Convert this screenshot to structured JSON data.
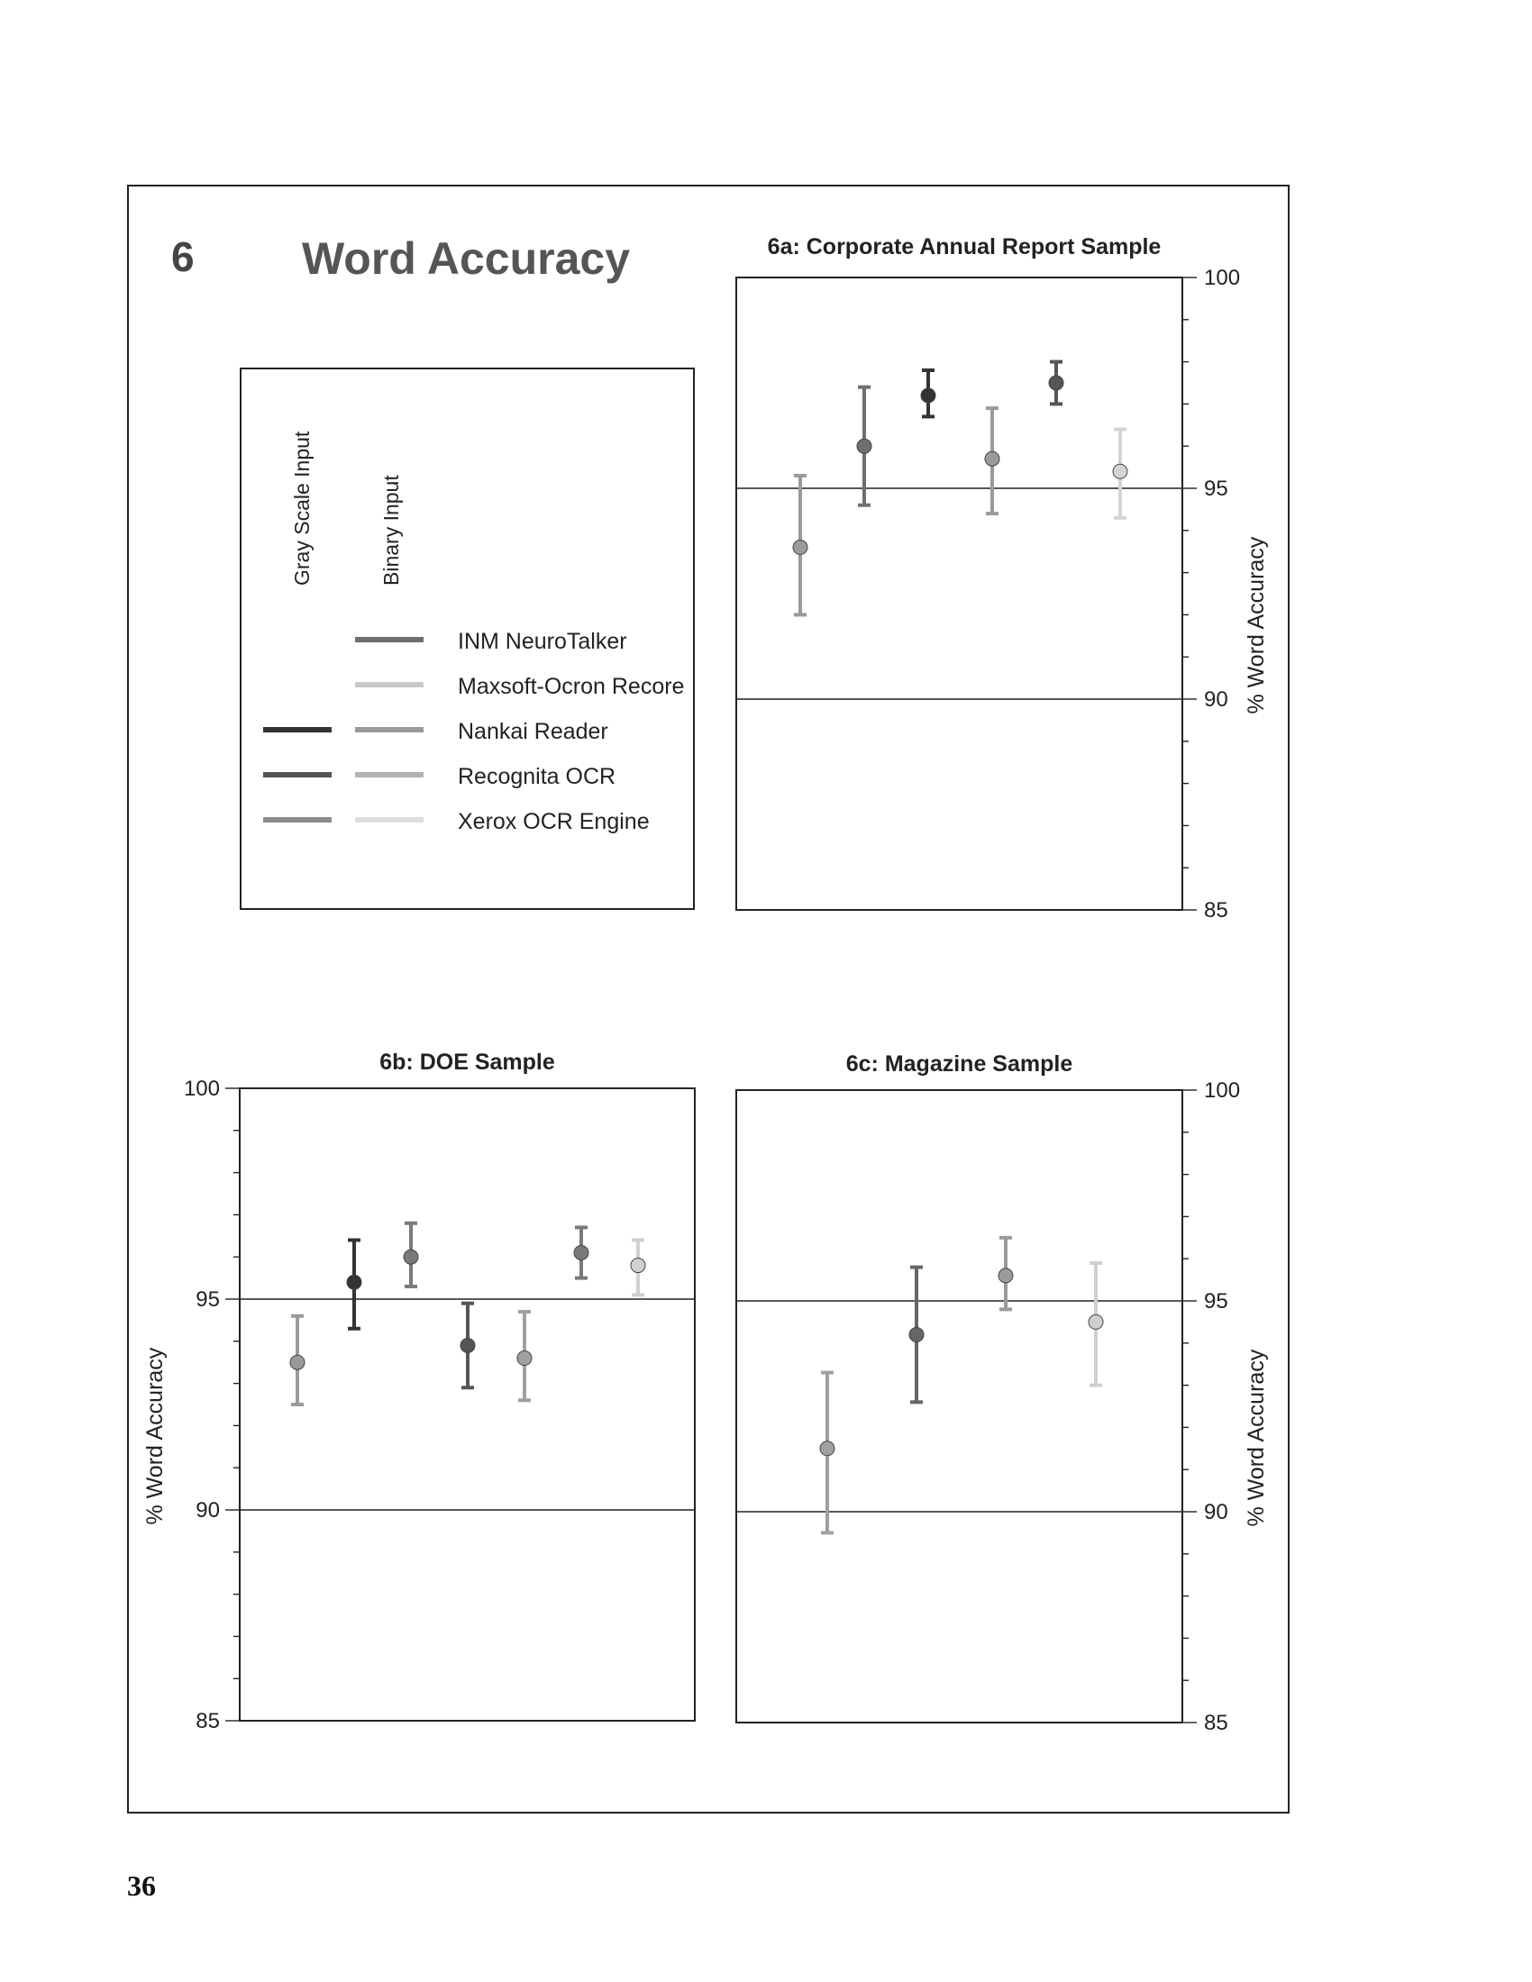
{
  "figure": {
    "number": "6",
    "title": "Word Accuracy",
    "page_number": "36"
  },
  "legend": {
    "column_titles": [
      "Gray Scale Input",
      "Binary Input"
    ],
    "entries": [
      {
        "name": "INM NeuroTalker",
        "gray": null,
        "binary": "#6f6f6f"
      },
      {
        "name": "Maxsoft-Ocron Recore",
        "gray": null,
        "binary": "#c8c8c8"
      },
      {
        "name": "Nankai Reader",
        "gray": "#333333",
        "binary": "#9a9a9a"
      },
      {
        "name": "Recognita OCR",
        "gray": "#555555",
        "binary": "#b2b2b2"
      },
      {
        "name": "Xerox OCR Engine",
        "gray": "#8c8c8c",
        "binary": "#dedede"
      }
    ]
  },
  "chart_data": [
    {
      "type": "scatter",
      "title": "6a: Corporate Annual Report Sample",
      "ylabel": "% Word Accuracy",
      "ylim": [
        85,
        100
      ],
      "yticks": [
        "85",
        "90",
        "95",
        "100"
      ],
      "axis_side": "right",
      "reference_lines": [
        90,
        95
      ],
      "points": [
        {
          "name": "Xerox OCR Engine (Gray Scale)",
          "value": 93.6,
          "low": 92.0,
          "high": 95.3,
          "color": "#9a9a9a"
        },
        {
          "name": "INM NeuroTalker (Binary)",
          "value": 96.0,
          "low": 94.6,
          "high": 97.4,
          "color": "#6f6f6f"
        },
        {
          "name": "Nankai Reader (Gray Scale)",
          "value": 97.2,
          "low": 96.7,
          "high": 97.8,
          "color": "#333333"
        },
        {
          "name": "Nankai Reader (Binary)",
          "value": 95.7,
          "low": 94.4,
          "high": 96.9,
          "color": "#9a9a9a"
        },
        {
          "name": "Recognita OCR (Gray Scale)",
          "value": 97.5,
          "low": 97.0,
          "high": 98.0,
          "color": "#555555"
        },
        {
          "name": "Xerox OCR Engine (Binary)",
          "value": 95.4,
          "low": 94.3,
          "high": 96.4,
          "color": "#d4d4d4"
        }
      ]
    },
    {
      "type": "scatter",
      "title": "6b: DOE Sample",
      "ylabel": "% Word Accuracy",
      "ylim": [
        85,
        100
      ],
      "yticks": [
        "85",
        "90",
        "95",
        "100"
      ],
      "axis_side": "left",
      "reference_lines": [
        90,
        95
      ],
      "points": [
        {
          "name": "Xerox OCR Engine (Gray Scale)",
          "value": 93.5,
          "low": 92.5,
          "high": 94.6,
          "color": "#9a9a9a"
        },
        {
          "name": "Nankai Reader (Gray Scale)",
          "value": 95.4,
          "low": 94.3,
          "high": 96.4,
          "color": "#333333"
        },
        {
          "name": "INM NeuroTalker (Binary)",
          "value": 96.0,
          "low": 95.3,
          "high": 96.8,
          "color": "#7a7a7a"
        },
        {
          "name": "Recognita OCR (Gray Scale)",
          "value": 93.9,
          "low": 92.9,
          "high": 94.9,
          "color": "#555555"
        },
        {
          "name": "Nankai Reader (Binary)",
          "value": 93.6,
          "low": 92.6,
          "high": 94.7,
          "color": "#a0a0a0"
        },
        {
          "name": "Recognita OCR (Binary)",
          "value": 96.1,
          "low": 95.5,
          "high": 96.7,
          "color": "#7a7a7a"
        },
        {
          "name": "Xerox OCR Engine (Binary)",
          "value": 95.8,
          "low": 95.1,
          "high": 96.4,
          "color": "#d0d0d0"
        }
      ]
    },
    {
      "type": "scatter",
      "title": "6c: Magazine Sample",
      "ylabel": "% Word Accuracy",
      "ylim": [
        85,
        100
      ],
      "yticks": [
        "85",
        "90",
        "95",
        "100"
      ],
      "axis_side": "right",
      "reference_lines": [
        90,
        95
      ],
      "points": [
        {
          "name": "Xerox OCR Engine (Gray Scale)",
          "value": 91.5,
          "low": 89.5,
          "high": 93.3,
          "color": "#a0a0a0"
        },
        {
          "name": "Nankai Reader (Gray Scale)",
          "value": 94.2,
          "low": 92.6,
          "high": 95.8,
          "color": "#666666"
        },
        {
          "name": "Nankai Reader (Binary)",
          "value": 95.6,
          "low": 94.8,
          "high": 96.5,
          "color": "#9a9a9a"
        },
        {
          "name": "Xerox OCR Engine (Binary)",
          "value": 94.5,
          "low": 93.0,
          "high": 95.9,
          "color": "#cfcfcf"
        }
      ]
    }
  ]
}
